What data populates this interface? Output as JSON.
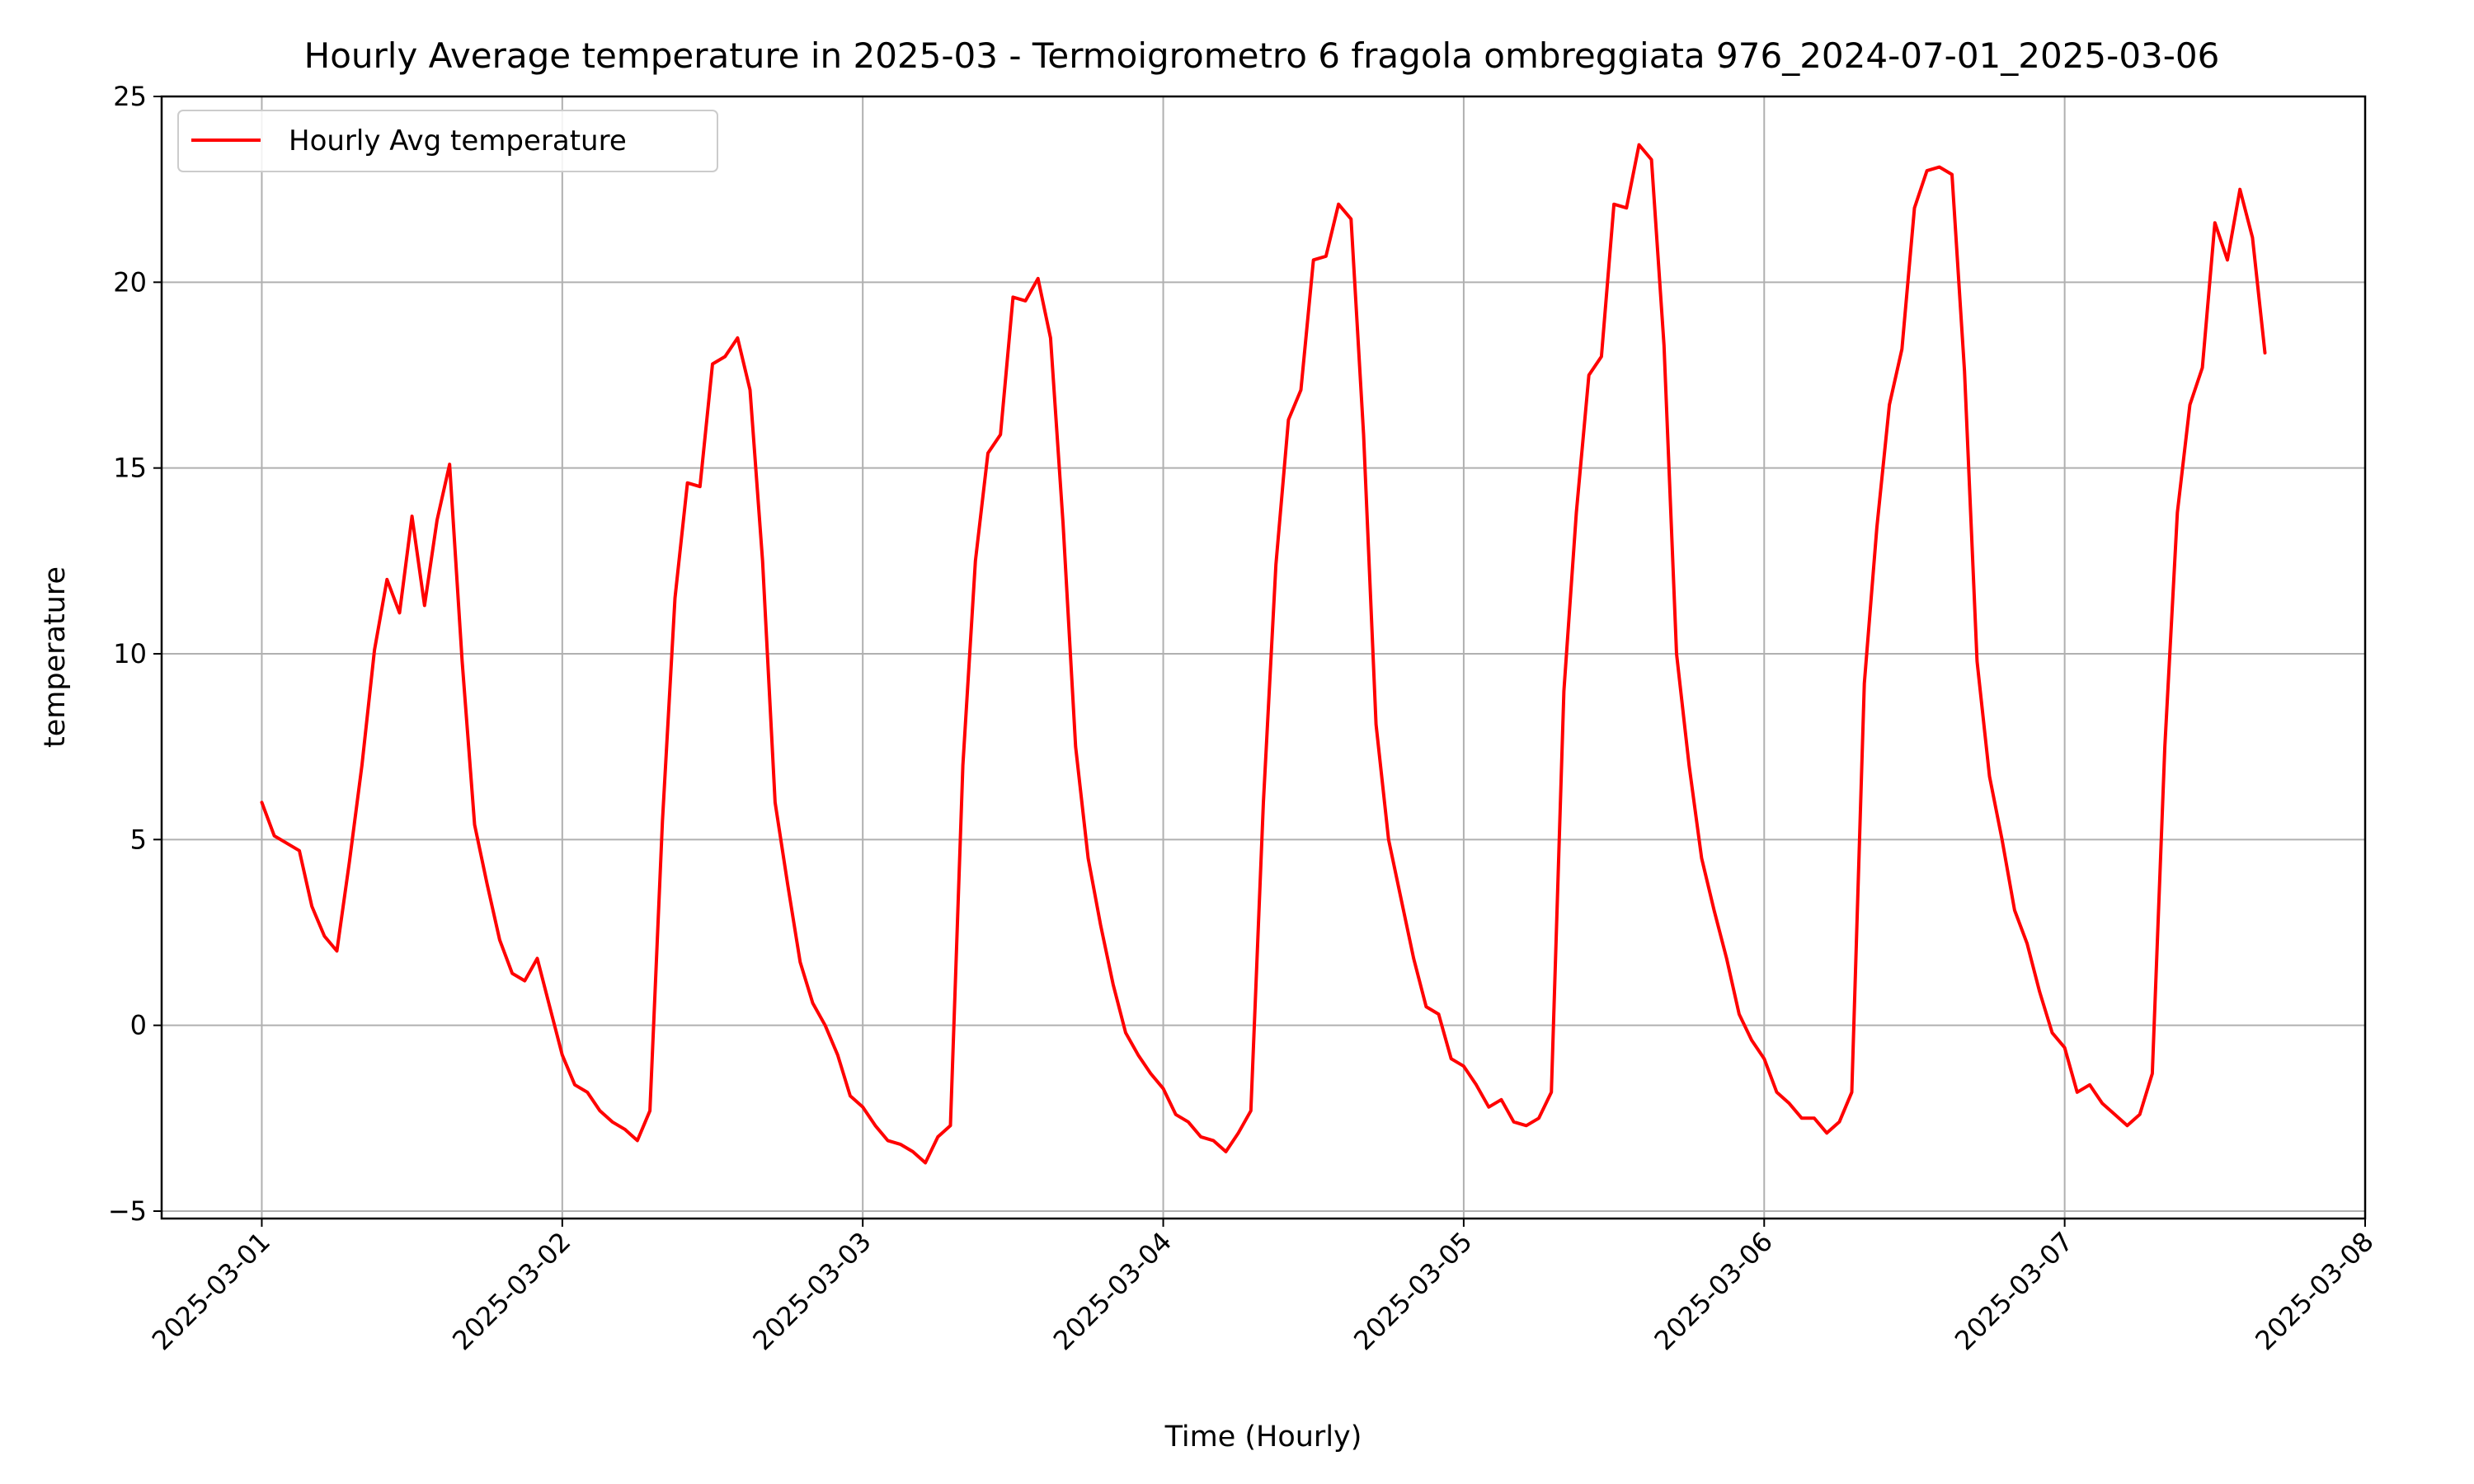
{
  "chart_data": {
    "type": "line",
    "title": "Hourly Average temperature in 2025-03 - Termoigrometro 6 fragola ombreggiata 976_2024-07-01_2025-03-06",
    "xlabel": "Time (Hourly)",
    "ylabel": "temperature",
    "x_ticks": [
      "2025-03-01",
      "2025-03-02",
      "2025-03-03",
      "2025-03-04",
      "2025-03-05",
      "2025-03-06",
      "2025-03-07",
      "2025-03-08"
    ],
    "y_ticks": [
      "−5",
      "0",
      "5",
      "10",
      "15",
      "20",
      "25"
    ],
    "y_tick_values": [
      -5,
      0,
      5,
      10,
      15,
      20,
      25
    ],
    "xlim": [
      "2025-02-28 16:00",
      "2025-03-08 00:00"
    ],
    "ylim": [
      -5.2,
      25
    ],
    "grid": true,
    "legend_position": "upper-left",
    "series": [
      {
        "name": "Hourly Avg temperature",
        "color": "#ff0000",
        "x_start": "2025-03-01 00:00",
        "x_step_hours": 1,
        "values": [
          6.0,
          5.1,
          4.9,
          4.7,
          3.2,
          2.4,
          2.0,
          4.4,
          7.0,
          10.1,
          12.0,
          11.1,
          13.7,
          11.3,
          13.6,
          15.1,
          9.8,
          5.4,
          3.8,
          2.3,
          1.4,
          1.2,
          1.8,
          0.5,
          -0.8,
          -1.6,
          -1.8,
          -2.3,
          -2.6,
          -2.8,
          -3.1,
          -2.3,
          5.5,
          11.5,
          14.6,
          14.5,
          17.8,
          18.0,
          18.5,
          17.1,
          12.5,
          6.0,
          3.8,
          1.7,
          0.6,
          0.0,
          -0.8,
          -1.9,
          -2.2,
          -2.7,
          -3.1,
          -3.2,
          -3.4,
          -3.7,
          -3.0,
          -2.7,
          7.0,
          12.5,
          15.4,
          15.9,
          19.6,
          19.5,
          20.1,
          18.5,
          13.5,
          7.5,
          4.5,
          2.7,
          1.1,
          -0.2,
          -0.8,
          -1.3,
          -1.7,
          -2.4,
          -2.6,
          -3.0,
          -3.1,
          -3.4,
          -2.9,
          -2.3,
          6.0,
          12.4,
          16.3,
          17.1,
          20.6,
          20.7,
          22.1,
          21.7,
          15.9,
          8.1,
          5.0,
          3.4,
          1.8,
          0.5,
          0.3,
          -0.9,
          -1.1,
          -1.6,
          -2.2,
          -2.0,
          -2.6,
          -2.7,
          -2.5,
          -1.8,
          9.0,
          13.8,
          17.5,
          18.0,
          22.1,
          22.0,
          23.7,
          23.3,
          18.3,
          10.0,
          7.0,
          4.5,
          3.1,
          1.8,
          0.3,
          -0.4,
          -0.9,
          -1.8,
          -2.1,
          -2.5,
          -2.5,
          -2.9,
          -2.6,
          -1.8,
          9.2,
          13.4,
          16.7,
          18.2,
          22.0,
          23.0,
          23.1,
          22.9,
          17.6,
          9.8,
          6.7,
          5.0,
          3.1,
          2.2,
          0.9,
          -0.2,
          -0.6,
          -1.8,
          -1.6,
          -2.1,
          -2.4,
          -2.7,
          -2.4,
          -1.3,
          7.5,
          13.8,
          16.7,
          17.7,
          21.6,
          20.6,
          22.5,
          21.2,
          18.1
        ]
      }
    ]
  }
}
